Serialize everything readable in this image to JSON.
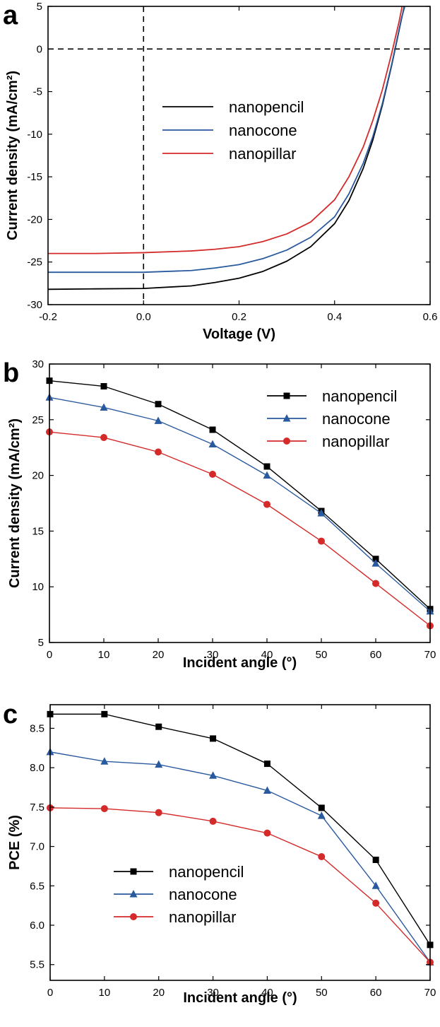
{
  "figure": {
    "colors": {
      "nanopencil": "#000000",
      "nanocone": "#2a5a9e",
      "nanopillar": "#d42a2a"
    }
  },
  "chart_data": [
    {
      "panel": "a",
      "type": "line",
      "xlabel": "Voltage (V)",
      "ylabel": "Current density (mA/cm²)",
      "xlim": [
        -0.2,
        0.6
      ],
      "ylim": [
        -30,
        5
      ],
      "xticks": [
        -0.2,
        0.0,
        0.2,
        0.4,
        0.6
      ],
      "xtick_labels": [
        "-0.2",
        "0.0",
        "0.2",
        "0.4",
        "0.6"
      ],
      "yticks": [
        5,
        0,
        -5,
        -10,
        -15,
        -20,
        -25,
        -30
      ],
      "ytick_labels": [
        "5",
        "0",
        "-5",
        "-10",
        "-15",
        "-20",
        "-25",
        "-30"
      ],
      "grid": false,
      "legend": "center",
      "reference_lines": [
        "y=0 dashed",
        "x=0 dashed"
      ],
      "series": [
        {
          "name": "nanopencil",
          "color": "#000000",
          "x": [
            -0.2,
            -0.1,
            0.0,
            0.1,
            0.15,
            0.2,
            0.25,
            0.3,
            0.35,
            0.4,
            0.43,
            0.46,
            0.48,
            0.5,
            0.52,
            0.54,
            0.55
          ],
          "y": [
            -28.2,
            -28.15,
            -28.1,
            -27.8,
            -27.4,
            -26.9,
            -26.1,
            -24.9,
            -23.2,
            -20.5,
            -17.8,
            -14.0,
            -10.7,
            -6.6,
            -1.8,
            3.5,
            6.0
          ]
        },
        {
          "name": "nanocone",
          "color": "#2a5a9e",
          "x": [
            -0.2,
            -0.1,
            0.0,
            0.1,
            0.15,
            0.2,
            0.25,
            0.3,
            0.35,
            0.4,
            0.43,
            0.46,
            0.48,
            0.5,
            0.52,
            0.54,
            0.552
          ],
          "y": [
            -26.2,
            -26.2,
            -26.2,
            -26.0,
            -25.7,
            -25.3,
            -24.6,
            -23.6,
            -22.1,
            -19.7,
            -17.0,
            -13.4,
            -10.3,
            -6.4,
            -1.7,
            3.6,
            6.0
          ]
        },
        {
          "name": "nanopillar",
          "color": "#d42a2a",
          "x": [
            -0.2,
            -0.1,
            0.0,
            0.1,
            0.15,
            0.2,
            0.25,
            0.3,
            0.35,
            0.4,
            0.43,
            0.46,
            0.48,
            0.5,
            0.52,
            0.535,
            0.545
          ],
          "y": [
            -24.0,
            -24.0,
            -23.9,
            -23.7,
            -23.5,
            -23.2,
            -22.6,
            -21.7,
            -20.3,
            -17.7,
            -15.0,
            -11.5,
            -8.4,
            -4.8,
            -0.4,
            3.2,
            6.0
          ]
        }
      ]
    },
    {
      "panel": "b",
      "type": "line",
      "xlabel": "Incident angle (°)",
      "ylabel": "Current density (mA/cm²)",
      "xlim": [
        0,
        70
      ],
      "ylim": [
        5,
        30
      ],
      "xticks": [
        0,
        10,
        20,
        30,
        40,
        50,
        60,
        70
      ],
      "xtick_labels": [
        "0",
        "10",
        "20",
        "30",
        "40",
        "50",
        "60",
        "70"
      ],
      "yticks": [
        5,
        10,
        15,
        20,
        25,
        30
      ],
      "ytick_labels": [
        "5",
        "10",
        "15",
        "20",
        "25",
        "30"
      ],
      "grid": false,
      "legend": "top-right",
      "categories": [
        0,
        10,
        20,
        30,
        40,
        50,
        60,
        70
      ],
      "series": [
        {
          "name": "nanopencil",
          "marker": "square",
          "color": "#000000",
          "values": [
            28.5,
            28.0,
            26.4,
            24.1,
            20.8,
            16.8,
            12.5,
            8.0
          ]
        },
        {
          "name": "nanocone",
          "marker": "triangle",
          "color": "#2a5a9e",
          "values": [
            27.0,
            26.1,
            24.9,
            22.8,
            20.0,
            16.6,
            12.1,
            7.8
          ]
        },
        {
          "name": "nanopillar",
          "marker": "circle",
          "color": "#d42a2a",
          "values": [
            23.9,
            23.4,
            22.1,
            20.1,
            17.4,
            14.1,
            10.3,
            6.5
          ]
        }
      ]
    },
    {
      "panel": "c",
      "type": "line",
      "xlabel": "Incident angle (°)",
      "ylabel": "PCE (%)",
      "xlim": [
        0,
        70
      ],
      "ylim": [
        5.3,
        8.8
      ],
      "xticks": [
        0,
        10,
        20,
        30,
        40,
        50,
        60,
        70
      ],
      "xtick_labels": [
        "0",
        "10",
        "20",
        "30",
        "40",
        "50",
        "60",
        "70"
      ],
      "yticks": [
        5.5,
        6.0,
        6.5,
        7.0,
        7.5,
        8.0,
        8.5
      ],
      "ytick_labels": [
        "5.5",
        "6.0",
        "6.5",
        "7.0",
        "7.5",
        "8.0",
        "8.5"
      ],
      "grid": false,
      "legend": "bottom-left",
      "categories": [
        0,
        10,
        20,
        30,
        40,
        50,
        60,
        70
      ],
      "series": [
        {
          "name": "nanopencil",
          "marker": "square",
          "color": "#000000",
          "values": [
            8.68,
            8.68,
            8.52,
            8.37,
            8.05,
            7.49,
            6.83,
            5.75
          ]
        },
        {
          "name": "nanocone",
          "marker": "triangle",
          "color": "#2a5a9e",
          "values": [
            8.2,
            8.08,
            8.04,
            7.9,
            7.71,
            7.39,
            6.5,
            5.53
          ]
        },
        {
          "name": "nanopillar",
          "marker": "circle",
          "color": "#d42a2a",
          "values": [
            7.49,
            7.48,
            7.43,
            7.32,
            7.17,
            6.87,
            6.28,
            5.53
          ]
        }
      ]
    }
  ]
}
